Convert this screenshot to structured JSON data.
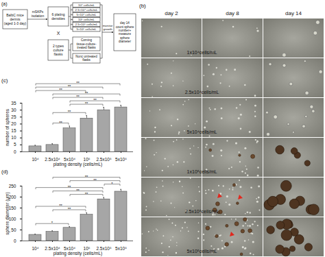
{
  "panels": {
    "a": {
      "label": "(a)",
      "source": [
        "BalbC mice",
        "dermis",
        "(aged 1-3 day)"
      ],
      "step": [
        "mSKPs",
        "isolation"
      ],
      "densities_box": [
        "6 plating",
        "densities"
      ],
      "cross": "X",
      "flasks_box": [
        "2 types",
        "culture",
        "flasks"
      ],
      "densities": [
        "10⁴ cells/mL",
        "2.5×10⁴ cells/mL",
        "5×10⁴ cells/mL",
        "10⁵ cells/mL",
        "2.5×10⁵ cells/mL",
        "5×10⁵ cells/mL"
      ],
      "flasks": [
        [
          "Corning",
          "tissue-culture-",
          "treated flasks"
        ],
        [
          "Nunc untreated",
          "flasks"
        ]
      ],
      "monitor": [
        "monitor",
        "growth"
      ],
      "result": [
        "day 14",
        "count sphere",
        "number+",
        "measure",
        "sphere",
        "diameter"
      ]
    },
    "b": {
      "label": "(b)",
      "columns": [
        "day 2",
        "day 8",
        "day 14"
      ],
      "rows": [
        "1x10⁴cells/mL",
        "2.5x10⁴cells/mL",
        "5x10⁴cells/mL",
        "1x10⁵cells/mL",
        "2.5x10⁵cells/mL",
        "5x10⁵cells/mL"
      ]
    }
  },
  "chart_data": [
    {
      "type": "bar",
      "title": "(c)",
      "categories": [
        "10⁴",
        "2.5x10⁴",
        "5x10⁴",
        "10⁵",
        "2.5x10⁵",
        "5x10⁵"
      ],
      "values": [
        4,
        5,
        17,
        24,
        30,
        32
      ],
      "errors": [
        0.7,
        0.8,
        1.5,
        2,
        2,
        1.5
      ],
      "color": "#a6a6a6",
      "x_label": "plating density (cells/mL)",
      "y_label": "number of spheres",
      "ylim": [
        0,
        35
      ],
      "yticks": [
        0,
        5,
        10,
        15,
        20,
        25,
        30,
        35
      ],
      "annotations": [
        {
          "from": "2.5x10⁴",
          "to": "5x10⁴",
          "text": "**"
        },
        {
          "from": "2.5x10⁴",
          "to": "10⁵",
          "text": "**"
        },
        {
          "from": "5x10⁴",
          "to": "2.5x10⁵",
          "text": "**"
        },
        {
          "from": "5x10⁴",
          "to": "5x10⁵",
          "text": "**"
        },
        {
          "from": "2.5x10⁴",
          "to": "2.5x10⁵",
          "text": "**"
        },
        {
          "from": "2.5x10⁴",
          "to": "5x10⁵",
          "text": "**"
        },
        {
          "from": "10⁴",
          "to": "10⁵",
          "text": "**"
        },
        {
          "from": "10⁴",
          "to": "2.5x10⁵",
          "text": "**"
        },
        {
          "from": "10⁴",
          "to": "5x10⁵",
          "text": "**"
        }
      ]
    },
    {
      "type": "bar",
      "title": "(d)",
      "categories": [
        "10⁴",
        "2.5x10⁴",
        "5x10⁴",
        "10⁵",
        "2.5x10⁵",
        "5x10⁵"
      ],
      "values": [
        28,
        42,
        60,
        120,
        190,
        225
      ],
      "errors": [
        3,
        4,
        5,
        8,
        8,
        10
      ],
      "color": "#a6a6a6",
      "x_label": "plating density (cells/mL)",
      "y_label": "sphere diameter (μm)",
      "ylim": [
        0,
        250
      ],
      "yticks": [
        0,
        50,
        100,
        150,
        200,
        250
      ],
      "annotations": [
        {
          "from": "10⁴",
          "to": "5x10⁴",
          "text": "*"
        },
        {
          "from": "2.5x10⁴",
          "to": "10⁵",
          "text": "**"
        },
        {
          "from": "10⁴",
          "to": "10⁵",
          "text": "**"
        },
        {
          "from": "5x10⁴",
          "to": "2.5x10⁵",
          "text": "**"
        },
        {
          "from": "2.5x10⁴",
          "to": "2.5x10⁵",
          "text": "**"
        },
        {
          "from": "10⁴",
          "to": "2.5x10⁵",
          "text": "**"
        },
        {
          "from": "2.5x10⁵",
          "to": "5x10⁵",
          "text": "*"
        },
        {
          "from": "5x10⁴",
          "to": "5x10⁵",
          "text": "**"
        },
        {
          "from": "2.5x10⁴",
          "to": "5x10⁵",
          "text": "**"
        }
      ]
    }
  ]
}
